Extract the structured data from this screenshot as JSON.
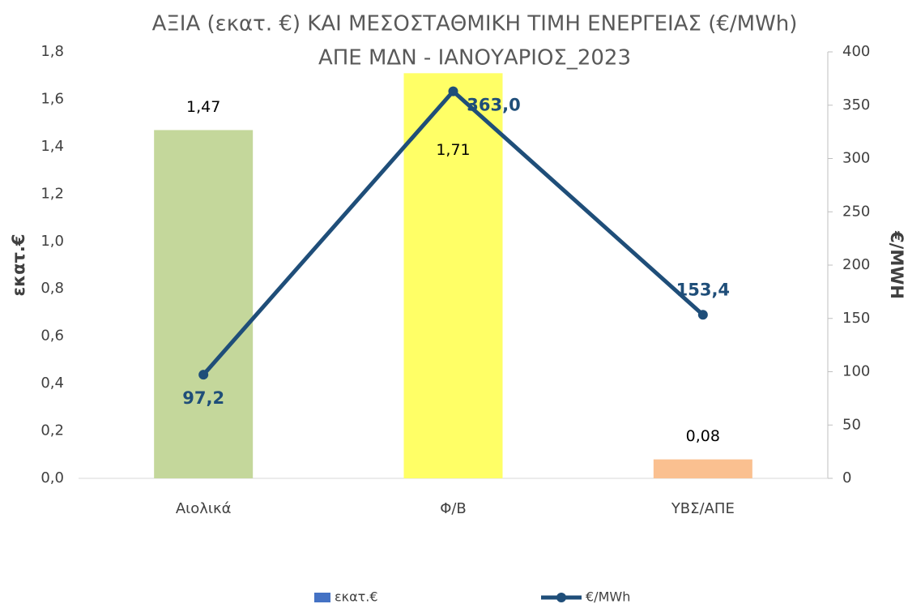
{
  "chart_data": {
    "type": "bar_line",
    "title": "ΑΞΙΑ (εκατ. €) ΚΑΙ ΜΕΣΟΣΤΑΘΜΙΚΗ ΤΙΜΗ ΕΝΕΡΓΕΙΑΣ (€/MWh)",
    "subtitle": "ΑΠΕ ΜΔΝ - ΙΑΝΟΥΑΡΙΟΣ_2023",
    "y_label": "εκατ.€",
    "y2_label": "€/MWH",
    "categories": [
      "Αιολικά",
      "Φ/Β",
      "ΥΒΣ/ΑΠΕ"
    ],
    "series": [
      {
        "name": "εκατ.€",
        "type": "bar",
        "color": "#4472c4",
        "colors": [
          "#c4d79b",
          "#ffff66",
          "#fac090"
        ],
        "values": [
          1.47,
          1.71,
          0.08
        ],
        "value_labels": [
          "1,47",
          "1,71",
          "0,08"
        ]
      },
      {
        "name": "€/MWh",
        "type": "line",
        "axis": "y2",
        "color": "#1f4e79",
        "values": [
          97.2,
          363.0,
          153.4
        ],
        "value_labels": [
          "97,2",
          "363,0",
          "153,4"
        ]
      }
    ],
    "ylim": [
      0,
      1.8
    ],
    "yticks": [
      {
        "value": 0,
        "label": "0,0"
      },
      {
        "value": 0.2,
        "label": "0,2"
      },
      {
        "value": 0.4,
        "label": "0,4"
      },
      {
        "value": 0.6,
        "label": "0,6"
      },
      {
        "value": 0.8,
        "label": "0,8"
      },
      {
        "value": 1.0,
        "label": "1,0"
      },
      {
        "value": 1.2,
        "label": "1,2"
      },
      {
        "value": 1.4,
        "label": "1,4"
      },
      {
        "value": 1.6,
        "label": "1,6"
      },
      {
        "value": 1.8,
        "label": "1,8"
      }
    ],
    "y2lim": [
      0,
      400
    ],
    "y2ticks": [
      0,
      50,
      100,
      150,
      200,
      250,
      300,
      350,
      400
    ],
    "grid": false,
    "legend": "bottom"
  }
}
